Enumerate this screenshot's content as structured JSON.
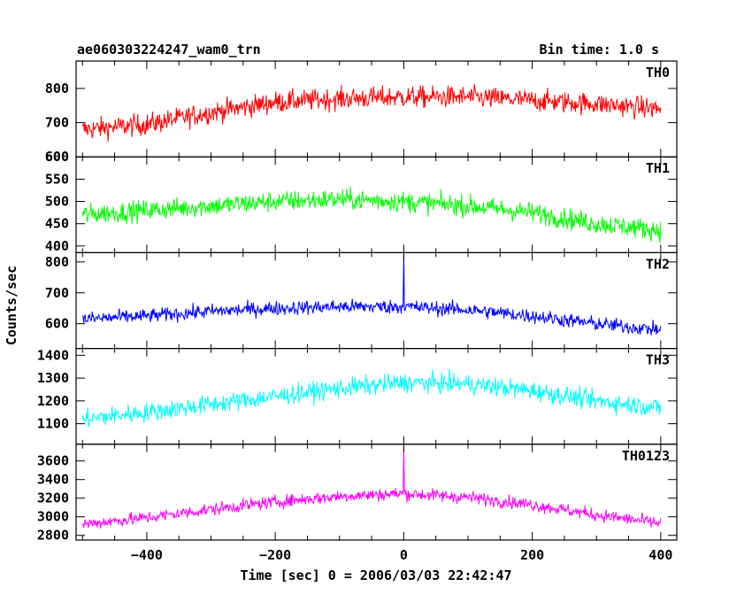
{
  "chart_data": {
    "type": "line",
    "title": "ae060303224247_wam0_trn",
    "bin_time_label": "Bin time: 1.0 s",
    "xlabel": "Time [sec] 0 = 2006/03/03 22:42:47",
    "ylabel": "Counts/sec",
    "xlim": [
      -510,
      425
    ],
    "x_ticks": [
      -400,
      -200,
      0,
      200,
      400
    ],
    "x_tick_labels": [
      "−400",
      "−200",
      "0",
      "200",
      "400"
    ],
    "grid": false,
    "panels": [
      {
        "name": "TH0",
        "color": "#ff0000",
        "ylim": [
          600,
          880
        ],
        "y_ticks": [
          600,
          700,
          800
        ],
        "y_tick_labels": [
          "600",
          "700",
          "800"
        ],
        "x_range": [
          -500,
          400
        ],
        "trend": {
          "x": [
            -500,
            -400,
            -300,
            -200,
            -100,
            0,
            100,
            200,
            300,
            400
          ],
          "y": [
            680,
            695,
            730,
            760,
            770,
            775,
            775,
            765,
            755,
            740
          ]
        },
        "noise": 30,
        "spikes": []
      },
      {
        "name": "TH1",
        "color": "#00ff00",
        "ylim": [
          385,
          600
        ],
        "y_ticks": [
          400,
          450,
          500,
          550,
          600
        ],
        "y_tick_labels": [
          "400",
          "450",
          "500",
          "550",
          "600"
        ],
        "x_range": [
          -500,
          400
        ],
        "trend": {
          "x": [
            -500,
            -400,
            -300,
            -200,
            -100,
            0,
            100,
            200,
            300,
            400
          ],
          "y": [
            470,
            480,
            490,
            500,
            505,
            500,
            490,
            475,
            450,
            435
          ]
        },
        "noise": 22,
        "spikes": []
      },
      {
        "name": "TH2",
        "color": "#0000ff",
        "ylim": [
          520,
          830
        ],
        "y_ticks": [
          600,
          700,
          800
        ],
        "y_tick_labels": [
          "600",
          "700",
          "800"
        ],
        "x_range": [
          -500,
          400
        ],
        "trend": {
          "x": [
            -500,
            -400,
            -300,
            -200,
            -100,
            0,
            100,
            200,
            300,
            400
          ],
          "y": [
            615,
            625,
            640,
            650,
            655,
            655,
            645,
            625,
            600,
            580
          ]
        },
        "noise": 22,
        "spikes": [
          {
            "x": 0,
            "y": 830
          }
        ]
      },
      {
        "name": "TH3",
        "color": "#00ffff",
        "ylim": [
          1010,
          1430
        ],
        "y_ticks": [
          1100,
          1200,
          1300,
          1400
        ],
        "y_tick_labels": [
          "1100",
          "1200",
          "1300",
          "1400"
        ],
        "x_range": [
          -500,
          400
        ],
        "trend": {
          "x": [
            -500,
            -400,
            -300,
            -200,
            -100,
            0,
            100,
            200,
            300,
            400
          ],
          "y": [
            1120,
            1150,
            1185,
            1220,
            1255,
            1280,
            1275,
            1245,
            1200,
            1170
          ]
        },
        "noise": 40,
        "spikes": []
      },
      {
        "name": "TH0123",
        "color": "#ff00ff",
        "ylim": [
          2750,
          3780
        ],
        "y_ticks": [
          2800,
          3000,
          3200,
          3400,
          3600
        ],
        "y_tick_labels": [
          "2800",
          "3000",
          "3200",
          "3400",
          "3600"
        ],
        "x_range": [
          -500,
          400
        ],
        "trend": {
          "x": [
            -500,
            -400,
            -300,
            -200,
            -100,
            0,
            100,
            200,
            300,
            400
          ],
          "y": [
            2920,
            2990,
            3080,
            3160,
            3220,
            3250,
            3210,
            3130,
            3020,
            2930
          ]
        },
        "noise": 65,
        "spikes": [
          {
            "x": 0,
            "y": 3750
          }
        ]
      }
    ]
  }
}
